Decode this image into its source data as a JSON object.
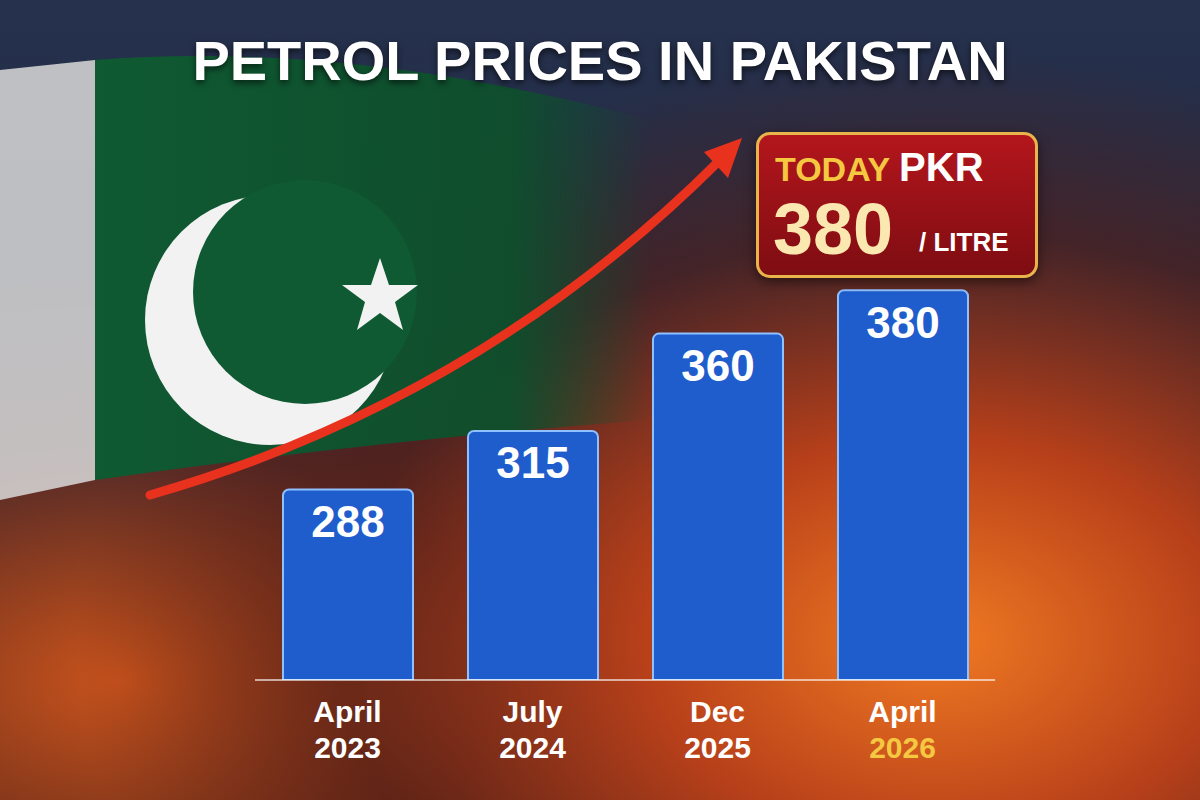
{
  "chart_data": {
    "type": "bar",
    "title": "PETROL PRICES IN PAKISTAN",
    "categories": [
      "April 2023",
      "July 2024",
      "Dec 2025",
      "April 2026"
    ],
    "values": [
      288,
      315,
      360,
      380
    ],
    "color": "#1f5ccc",
    "ylim": [
      200,
      400
    ],
    "grid": false,
    "data_labels": true,
    "tick_labels": "x",
    "annotation": {
      "lead": "TODAY",
      "currency": "PKR",
      "amount": 380,
      "unit": "/ LITRE"
    }
  }
}
